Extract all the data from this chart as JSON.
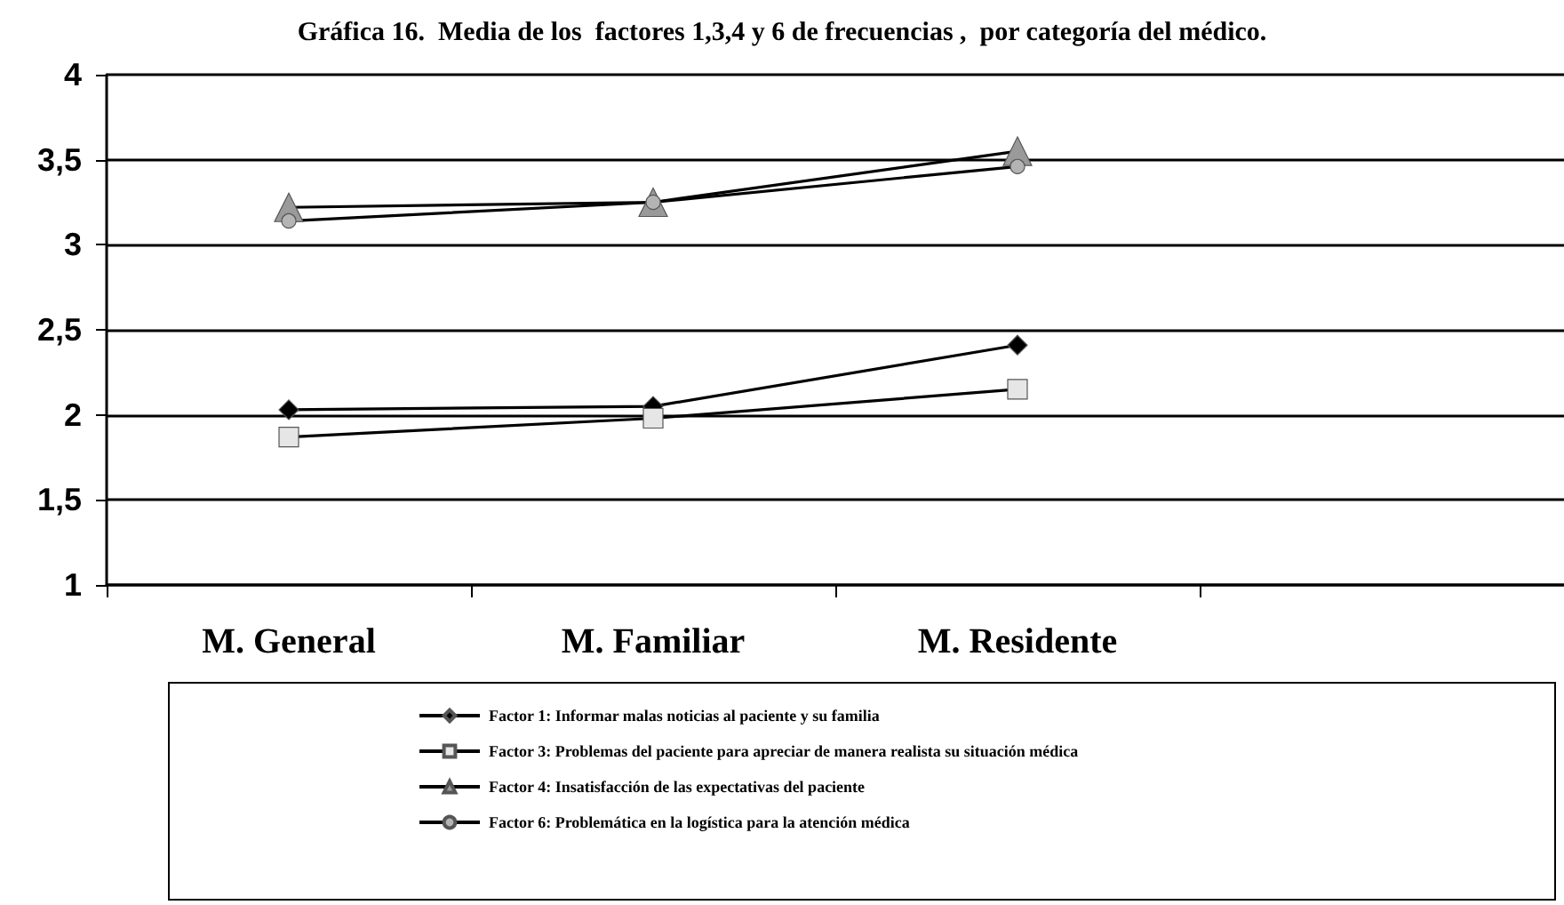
{
  "chart_data": {
    "type": "line",
    "title": "Gráfica 16.  Media de los  factores 1,3,4 y 6 de frecuencias ,  por categoría del médico.",
    "categories": [
      "M. General",
      "M. Familiar",
      "M. Residente",
      null
    ],
    "series": [
      {
        "name": "Factor 1: Informar malas noticias al paciente y su familia",
        "color": "#000000",
        "marker": "diamond",
        "values": [
          2.03,
          2.05,
          2.41,
          null
        ]
      },
      {
        "name": "Factor 3: Problemas del paciente para apreciar de manera realista su situación médica",
        "color": "#e6e6e6",
        "marker": "square",
        "values": [
          1.87,
          1.98,
          2.15,
          null
        ]
      },
      {
        "name": "Factor 4: Insatisfacción de las expectativas del paciente",
        "color": "#9a9a9a",
        "marker": "triangle",
        "values": [
          3.22,
          3.25,
          3.55,
          null
        ]
      },
      {
        "name": "Factor 6: Problemática en la logística para la atención médica",
        "color": "#b4b4b4",
        "marker": "circle",
        "values": [
          3.14,
          3.25,
          3.46,
          null
        ]
      }
    ],
    "ylim": [
      1,
      4
    ],
    "yticks": [
      1,
      {
        "value": 1.5,
        "label": "1,5"
      },
      2,
      {
        "value": 2.5,
        "label": "2,5"
      },
      3,
      {
        "value": 3.5,
        "label": "3,5"
      },
      4
    ],
    "grid": "y",
    "legend": "bottom"
  }
}
